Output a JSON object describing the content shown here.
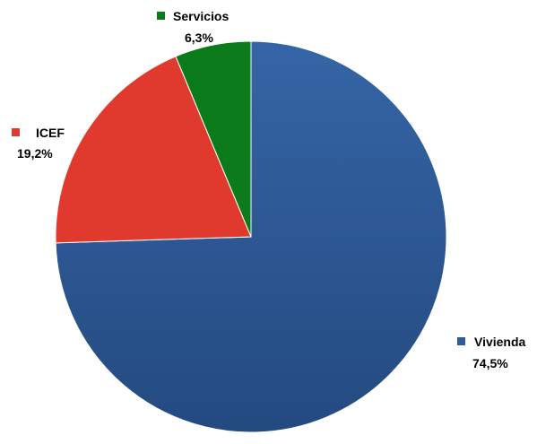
{
  "chart_data": {
    "type": "pie",
    "title": "",
    "legend": "none",
    "slices": [
      {
        "name": "Vivienda",
        "value": 74.5,
        "value_label": "74,5%",
        "color": "#2E5C9A"
      },
      {
        "name": "ICEF",
        "value": 19.2,
        "value_label": "19,2%",
        "color": "#E03A2E"
      },
      {
        "name": "Servicios",
        "value": 6.3,
        "value_label": "6,3%",
        "color": "#0A7A1A"
      }
    ]
  }
}
